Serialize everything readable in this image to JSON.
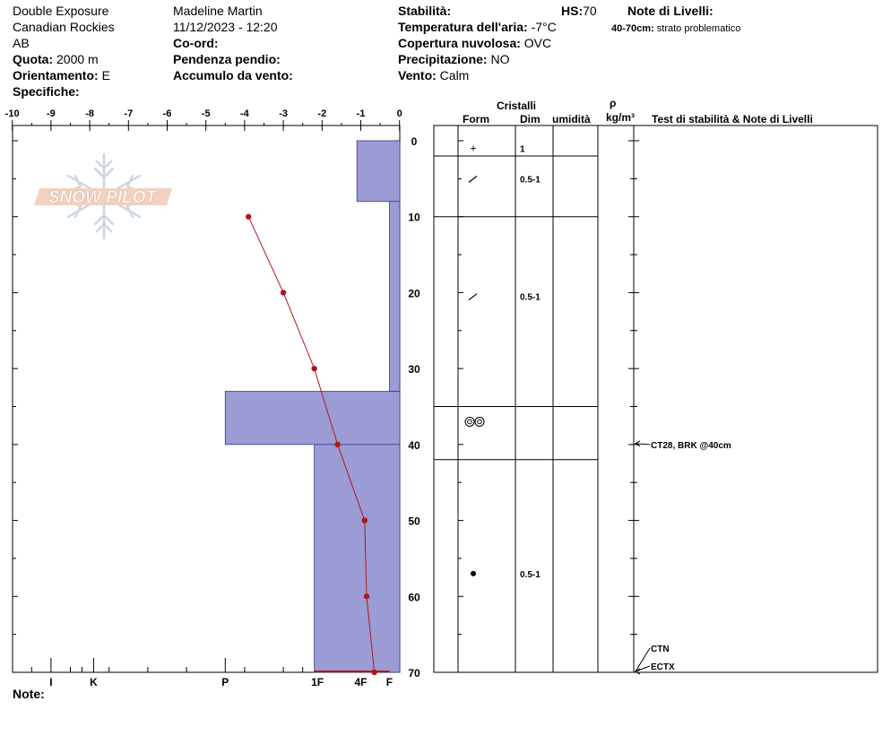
{
  "header": {
    "location": "Double Exposure",
    "range": "Canadian Rockies",
    "province": "AB",
    "observer": "Madeline  Martin",
    "datetime": "11/12/2023 - 12:20",
    "labels": {
      "quota": "Quota:",
      "orientamento": "Orientamento:",
      "specifiche": "Specifiche:",
      "coord": "Co-ord:",
      "pendenza": "Pendenza pendio:",
      "accumulo": "Accumulo da vento:",
      "stabilita": "Stabilità:",
      "temperatura": "Temperatura dell'aria:",
      "copertura": "Copertura nuvolosa:",
      "precipitazione": "Precipitazione:",
      "vento": "Vento:",
      "hs": "HS:",
      "note_livelli": "Note di Livelli:",
      "note": "Note:"
    },
    "values": {
      "quota": "2000 m",
      "orientamento": "E",
      "temperatura": "-7°C",
      "copertura": "OVC",
      "precipitazione": "NO",
      "vento": "Calm",
      "hs": "70"
    },
    "layer_note_range": "40-70cm:",
    "layer_note_text": "strato problematico"
  },
  "columns": {
    "cristalli": "Cristalli",
    "form": "Form",
    "dim": "Dim",
    "umidita": "umidità",
    "rho": "ρ",
    "density_unit": "kg/m³",
    "tests": "Test di stabilità & Note di Livelli"
  },
  "logo": {
    "text": "SNOW PILOT",
    "color": "#e8b49a"
  },
  "colors": {
    "hardness_fill": "#9b9bd6",
    "hardness_stroke": "#3a3a8a",
    "temp_line": "#b01818"
  },
  "chart_data": {
    "type": "snow-profile",
    "depth_range": [
      0,
      70
    ],
    "depth_ticks": [
      0,
      10,
      20,
      30,
      40,
      50,
      60,
      70
    ],
    "temp_axis": {
      "range": [
        -10,
        0
      ],
      "ticks": [
        -10,
        -9,
        -8,
        -7,
        -6,
        -5,
        -4,
        -3,
        -2,
        -1,
        0
      ]
    },
    "hardness_axis": [
      {
        "label": "I",
        "pos": -9
      },
      {
        "label": "K",
        "pos": -7.9
      },
      {
        "label": "P",
        "pos": -4.5
      },
      {
        "label": "1F",
        "pos": -2.12
      },
      {
        "label": "4F",
        "pos": -1
      },
      {
        "label": "F",
        "pos": -0.26
      }
    ],
    "hardness_layers": [
      {
        "top": 0,
        "bottom": 8,
        "hardness": -1.1
      },
      {
        "top": 8,
        "bottom": 33,
        "hardness": -0.26
      },
      {
        "top": 33,
        "bottom": 40,
        "hardness": -4.5
      },
      {
        "top": 40,
        "bottom": 70,
        "hardness": -2.2
      }
    ],
    "temperature": [
      {
        "depth": 10,
        "temp": -3.9
      },
      {
        "depth": 20,
        "temp": -3
      },
      {
        "depth": 30,
        "temp": -2.2
      },
      {
        "depth": 40,
        "temp": -1.6
      },
      {
        "depth": 50,
        "temp": -0.9
      },
      {
        "depth": 60,
        "temp": -0.85
      },
      {
        "depth": 70,
        "temp": -0.65
      }
    ],
    "layer_boundaries": [
      2,
      10,
      35,
      42
    ],
    "crystals": [
      {
        "depth": 1,
        "form": "+",
        "dim": "1"
      },
      {
        "depth": 5,
        "form": "⁄",
        "dim": "0.5-1"
      },
      {
        "depth": 20.5,
        "form": "⁄",
        "dim": "0.5-1"
      },
      {
        "depth": 37,
        "form": "◎◎",
        "dim": ""
      },
      {
        "depth": 57,
        "form": "●",
        "dim": "0.5-1"
      }
    ],
    "stability_tests": [
      {
        "label": "CT28, BRK @40cm",
        "depth": 40
      },
      {
        "label": "CTN",
        "depth": 70
      },
      {
        "label": "ECTX",
        "depth": 70
      }
    ]
  }
}
